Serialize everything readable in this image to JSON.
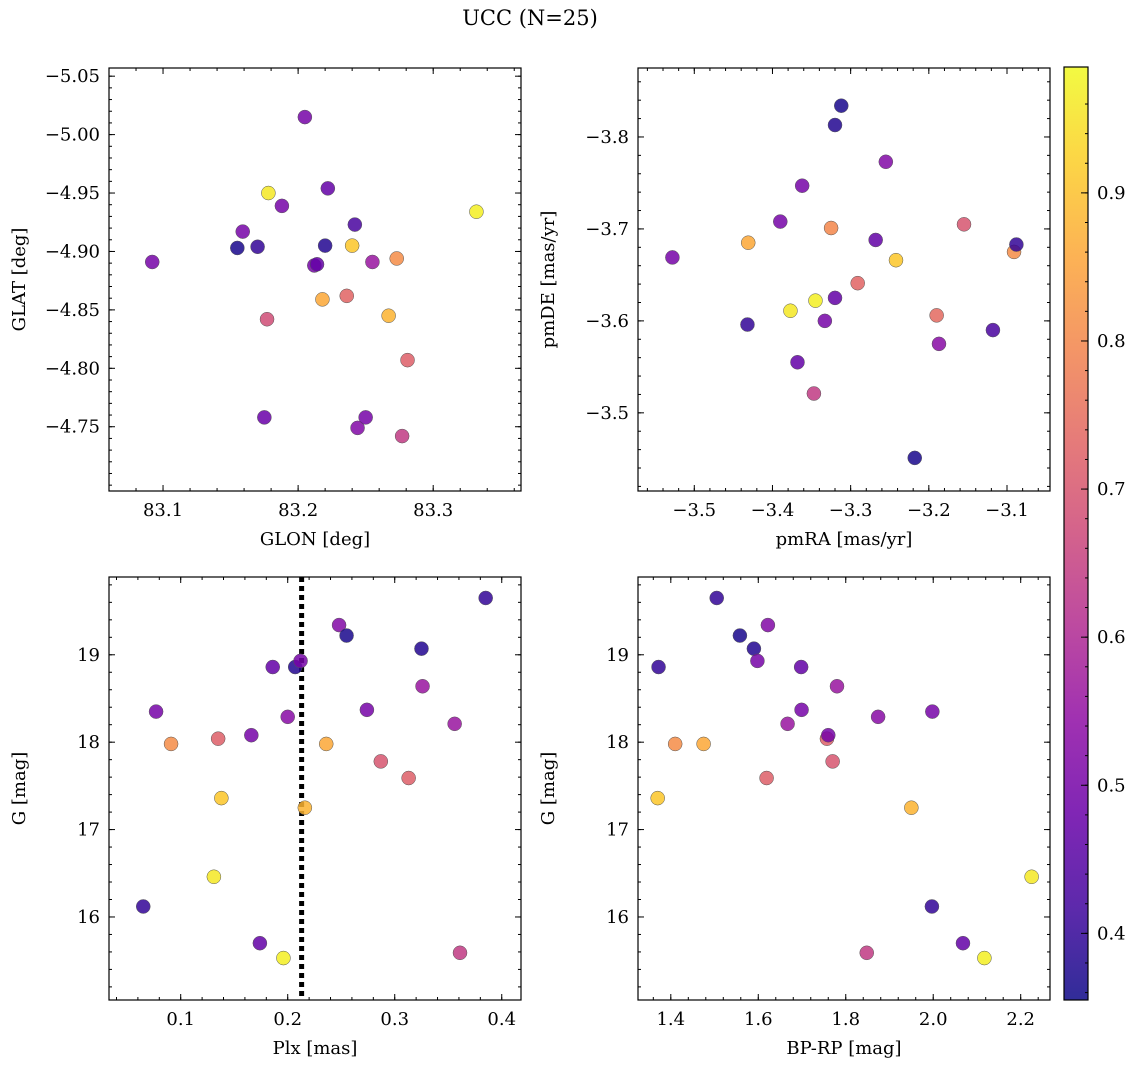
{
  "title": "UCC (N=25)",
  "colorbar": {
    "range": [
      0.355,
      0.985
    ],
    "ticks": [
      0.4,
      0.5,
      0.6,
      0.7,
      0.8,
      0.9
    ],
    "tick_labels": [
      "0.4",
      "0.5",
      "0.6",
      "0.7",
      "0.8",
      "0.9"
    ],
    "colormap": "plasma"
  },
  "chart_data": [
    {
      "type": "scatter",
      "name": "sky-position",
      "xlabel": "GLON [deg]",
      "ylabel": "GLAT [deg]",
      "xlim": [
        83.06,
        83.365
      ],
      "ylim": [
        -5.057,
        -4.695
      ],
      "xticks": [
        83.1,
        83.2,
        83.3
      ],
      "xtick_labels": [
        "83.1",
        "83.2",
        "83.3"
      ],
      "yticks": [
        -4.75,
        -4.8,
        -4.85,
        -4.9,
        -4.95,
        -5.0,
        -5.05
      ],
      "ytick_labels": [
        "−4.75",
        "−4.80",
        "−4.85",
        "−4.90",
        "−4.95",
        "−5.00",
        "−5.05"
      ],
      "points": [
        {
          "x": 83.092,
          "y": -4.891,
          "c": 0.5
        },
        {
          "x": 83.155,
          "y": -4.903,
          "c": 0.37
        },
        {
          "x": 83.159,
          "y": -4.917,
          "c": 0.5
        },
        {
          "x": 83.17,
          "y": -4.904,
          "c": 0.4
        },
        {
          "x": 83.175,
          "y": -4.758,
          "c": 0.48
        },
        {
          "x": 83.177,
          "y": -4.842,
          "c": 0.68
        },
        {
          "x": 83.178,
          "y": -4.95,
          "c": 0.96
        },
        {
          "x": 83.188,
          "y": -4.939,
          "c": 0.5
        },
        {
          "x": 83.205,
          "y": -5.015,
          "c": 0.5
        },
        {
          "x": 83.212,
          "y": -4.888,
          "c": 0.5
        },
        {
          "x": 83.214,
          "y": -4.889,
          "c": 0.47
        },
        {
          "x": 83.218,
          "y": -4.859,
          "c": 0.86
        },
        {
          "x": 83.22,
          "y": -4.905,
          "c": 0.38
        },
        {
          "x": 83.222,
          "y": -4.954,
          "c": 0.47
        },
        {
          "x": 83.236,
          "y": -4.862,
          "c": 0.73
        },
        {
          "x": 83.24,
          "y": -4.905,
          "c": 0.91
        },
        {
          "x": 83.242,
          "y": -4.923,
          "c": 0.43
        },
        {
          "x": 83.244,
          "y": -4.749,
          "c": 0.52
        },
        {
          "x": 83.25,
          "y": -4.758,
          "c": 0.5
        },
        {
          "x": 83.255,
          "y": -4.891,
          "c": 0.56
        },
        {
          "x": 83.267,
          "y": -4.845,
          "c": 0.88
        },
        {
          "x": 83.273,
          "y": -4.894,
          "c": 0.81
        },
        {
          "x": 83.277,
          "y": -4.742,
          "c": 0.64
        },
        {
          "x": 83.281,
          "y": -4.807,
          "c": 0.72
        },
        {
          "x": 83.332,
          "y": -4.934,
          "c": 0.97
        }
      ]
    },
    {
      "type": "scatter",
      "name": "proper-motion",
      "xlabel": "pmRA [mas/yr]",
      "ylabel": "pmDE [mas/yr]",
      "xlim": [
        -3.572,
        -3.045
      ],
      "ylim": [
        -3.875,
        -3.415
      ],
      "xticks": [
        -3.5,
        -3.4,
        -3.3,
        -3.2,
        -3.1
      ],
      "xtick_labels": [
        "−3.5",
        "−3.4",
        "−3.3",
        "−3.2",
        "−3.1"
      ],
      "yticks": [
        -3.5,
        -3.6,
        -3.7,
        -3.8
      ],
      "ytick_labels": [
        "−3.5",
        "−3.6",
        "−3.7",
        "−3.8"
      ],
      "points": [
        {
          "x": -3.528,
          "y": -3.669,
          "c": 0.5
        },
        {
          "x": -3.432,
          "y": -3.596,
          "c": 0.4
        },
        {
          "x": -3.431,
          "y": -3.685,
          "c": 0.86
        },
        {
          "x": -3.39,
          "y": -3.708,
          "c": 0.5
        },
        {
          "x": -3.377,
          "y": -3.611,
          "c": 0.96
        },
        {
          "x": -3.368,
          "y": -3.555,
          "c": 0.47
        },
        {
          "x": -3.362,
          "y": -3.747,
          "c": 0.5
        },
        {
          "x": -3.347,
          "y": -3.521,
          "c": 0.64
        },
        {
          "x": -3.345,
          "y": -3.622,
          "c": 0.97
        },
        {
          "x": -3.333,
          "y": -3.6,
          "c": 0.5
        },
        {
          "x": -3.325,
          "y": -3.701,
          "c": 0.8
        },
        {
          "x": -3.32,
          "y": -3.625,
          "c": 0.47
        },
        {
          "x": -3.32,
          "y": -3.813,
          "c": 0.38
        },
        {
          "x": -3.312,
          "y": -3.834,
          "c": 0.37
        },
        {
          "x": -3.291,
          "y": -3.641,
          "c": 0.73
        },
        {
          "x": -3.268,
          "y": -3.688,
          "c": 0.47
        },
        {
          "x": -3.255,
          "y": -3.773,
          "c": 0.52
        },
        {
          "x": -3.242,
          "y": -3.666,
          "c": 0.91
        },
        {
          "x": -3.218,
          "y": -3.451,
          "c": 0.37
        },
        {
          "x": -3.19,
          "y": -3.606,
          "c": 0.74
        },
        {
          "x": -3.187,
          "y": -3.575,
          "c": 0.53
        },
        {
          "x": -3.155,
          "y": -3.705,
          "c": 0.7
        },
        {
          "x": -3.118,
          "y": -3.59,
          "c": 0.43
        },
        {
          "x": -3.091,
          "y": -3.675,
          "c": 0.81
        },
        {
          "x": -3.088,
          "y": -3.683,
          "c": 0.4
        }
      ]
    },
    {
      "type": "scatter",
      "name": "parallax-magnitude",
      "xlabel": "Plx [mas]",
      "ylabel": "G [mag]",
      "xlim": [
        0.033,
        0.418
      ],
      "ylim": [
        19.89,
        15.05
      ],
      "xticks": [
        0.1,
        0.2,
        0.3,
        0.4
      ],
      "xtick_labels": [
        "0.1",
        "0.2",
        "0.3",
        "0.4"
      ],
      "yticks": [
        16,
        17,
        18,
        19
      ],
      "ytick_labels": [
        "16",
        "17",
        "18",
        "19"
      ],
      "vline": {
        "x": 0.213
      },
      "points": [
        {
          "x": 0.065,
          "y": 16.12,
          "c": 0.4
        },
        {
          "x": 0.077,
          "y": 18.35,
          "c": 0.5
        },
        {
          "x": 0.091,
          "y": 17.98,
          "c": 0.81
        },
        {
          "x": 0.131,
          "y": 16.46,
          "c": 0.96
        },
        {
          "x": 0.135,
          "y": 18.04,
          "c": 0.72
        },
        {
          "x": 0.138,
          "y": 17.36,
          "c": 0.91
        },
        {
          "x": 0.166,
          "y": 18.08,
          "c": 0.5
        },
        {
          "x": 0.174,
          "y": 15.7,
          "c": 0.47
        },
        {
          "x": 0.186,
          "y": 18.86,
          "c": 0.47
        },
        {
          "x": 0.196,
          "y": 15.53,
          "c": 0.97
        },
        {
          "x": 0.2,
          "y": 18.29,
          "c": 0.53
        },
        {
          "x": 0.207,
          "y": 18.86,
          "c": 0.38
        },
        {
          "x": 0.212,
          "y": 18.93,
          "c": 0.5
        },
        {
          "x": 0.216,
          "y": 17.25,
          "c": 0.88
        },
        {
          "x": 0.236,
          "y": 17.98,
          "c": 0.86
        },
        {
          "x": 0.248,
          "y": 19.34,
          "c": 0.52
        },
        {
          "x": 0.255,
          "y": 19.22,
          "c": 0.37
        },
        {
          "x": 0.274,
          "y": 18.37,
          "c": 0.5
        },
        {
          "x": 0.287,
          "y": 17.78,
          "c": 0.7
        },
        {
          "x": 0.313,
          "y": 17.59,
          "c": 0.72
        },
        {
          "x": 0.325,
          "y": 19.07,
          "c": 0.38
        },
        {
          "x": 0.326,
          "y": 18.64,
          "c": 0.56
        },
        {
          "x": 0.356,
          "y": 18.21,
          "c": 0.56
        },
        {
          "x": 0.361,
          "y": 15.59,
          "c": 0.64
        },
        {
          "x": 0.385,
          "y": 19.65,
          "c": 0.4
        }
      ]
    },
    {
      "type": "scatter",
      "name": "color-magnitude",
      "xlabel": "BP-RP [mag]",
      "ylabel": "G [mag]",
      "xlim": [
        1.325,
        2.267
      ],
      "ylim": [
        19.89,
        15.05
      ],
      "xticks": [
        1.4,
        1.6,
        1.8,
        2.0,
        2.2
      ],
      "xtick_labels": [
        "1.4",
        "1.6",
        "1.8",
        "2.0",
        "2.2"
      ],
      "yticks": [
        16,
        17,
        18,
        19
      ],
      "ytick_labels": [
        "16",
        "17",
        "18",
        "19"
      ],
      "points": [
        {
          "x": 1.37,
          "y": 17.36,
          "c": 0.91
        },
        {
          "x": 1.372,
          "y": 18.86,
          "c": 0.4
        },
        {
          "x": 1.41,
          "y": 17.98,
          "c": 0.81
        },
        {
          "x": 1.475,
          "y": 17.98,
          "c": 0.86
        },
        {
          "x": 1.505,
          "y": 19.65,
          "c": 0.4
        },
        {
          "x": 1.558,
          "y": 19.22,
          "c": 0.37
        },
        {
          "x": 1.59,
          "y": 19.07,
          "c": 0.38
        },
        {
          "x": 1.598,
          "y": 18.93,
          "c": 0.5
        },
        {
          "x": 1.619,
          "y": 17.59,
          "c": 0.72
        },
        {
          "x": 1.622,
          "y": 19.34,
          "c": 0.52
        },
        {
          "x": 1.667,
          "y": 18.21,
          "c": 0.56
        },
        {
          "x": 1.698,
          "y": 18.86,
          "c": 0.47
        },
        {
          "x": 1.699,
          "y": 18.37,
          "c": 0.5
        },
        {
          "x": 1.757,
          "y": 18.04,
          "c": 0.72
        },
        {
          "x": 1.76,
          "y": 18.08,
          "c": 0.5
        },
        {
          "x": 1.77,
          "y": 17.78,
          "c": 0.7
        },
        {
          "x": 1.78,
          "y": 18.64,
          "c": 0.56
        },
        {
          "x": 1.848,
          "y": 15.59,
          "c": 0.64
        },
        {
          "x": 1.874,
          "y": 18.29,
          "c": 0.53
        },
        {
          "x": 1.95,
          "y": 17.25,
          "c": 0.88
        },
        {
          "x": 1.997,
          "y": 16.12,
          "c": 0.4
        },
        {
          "x": 1.998,
          "y": 18.35,
          "c": 0.5
        },
        {
          "x": 2.068,
          "y": 15.7,
          "c": 0.47
        },
        {
          "x": 2.117,
          "y": 15.53,
          "c": 0.97
        },
        {
          "x": 2.225,
          "y": 16.46,
          "c": 0.96
        }
      ]
    }
  ]
}
